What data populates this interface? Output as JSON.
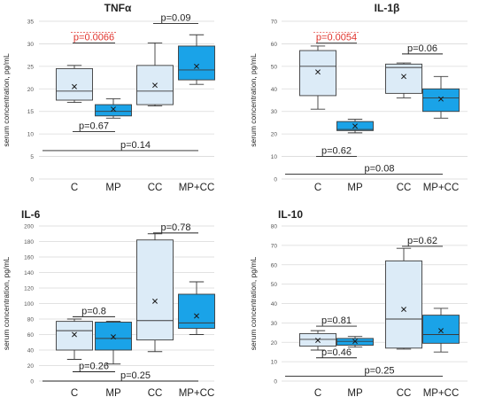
{
  "colors": {
    "light_box": "#dcebf7",
    "dark_box": "#1aa3e8",
    "edge": "#3b3b3b",
    "line": "#222222",
    "grid": "#d9d9d9",
    "sig": "#e0322b",
    "text": "#222222"
  },
  "chart_data": [
    {
      "type": "box",
      "title": "TNFα",
      "ylabel": "serum concentration, pg/mL",
      "ylim": [
        0,
        35
      ],
      "yticks": [
        0,
        5,
        10,
        15,
        20,
        25,
        30,
        35
      ],
      "grid": true,
      "categories": [
        "C",
        "MP",
        "CC",
        "MP+CC"
      ],
      "boxes": [
        {
          "category": "C",
          "min": 17,
          "q1": 17.5,
          "median": 19.5,
          "q3": 24.5,
          "max": 25.2,
          "mean": 20.5,
          "fill": "light"
        },
        {
          "category": "MP",
          "min": 13.5,
          "q1": 14,
          "median": 15,
          "q3": 16.5,
          "max": 17.8,
          "mean": 15.5,
          "fill": "dark"
        },
        {
          "category": "CC",
          "min": 16.2,
          "q1": 16.5,
          "median": 19.5,
          "q3": 25.2,
          "max": 30.2,
          "mean": 20.8,
          "fill": "light"
        },
        {
          "category": "MP+CC",
          "min": 21,
          "q1": 22,
          "median": 24.2,
          "q3": 29.5,
          "max": 32,
          "mean": 25,
          "fill": "dark"
        }
      ],
      "comparisons": [
        {
          "from": 0,
          "to": 1,
          "label": "p=0.0066",
          "significant": true,
          "y": 30.2
        },
        {
          "from": 2,
          "to": 3,
          "label": "p=0.09",
          "significant": false,
          "y": 34.5
        },
        {
          "from": 0,
          "to": 1,
          "label": "p=0.67",
          "significant": false,
          "y": 10.5
        },
        {
          "from": 0,
          "to": 3,
          "label": "p=0.14",
          "significant": false,
          "y": 6.3
        }
      ]
    },
    {
      "type": "box",
      "title": "IL-1β",
      "ylabel": "serum concentration, pg/mL",
      "ylim": [
        0,
        70
      ],
      "yticks": [
        0,
        10,
        20,
        30,
        40,
        50,
        60,
        70
      ],
      "grid": true,
      "categories": [
        "C",
        "MP",
        "CC",
        "MP+CC"
      ],
      "boxes": [
        {
          "category": "C",
          "min": 31,
          "q1": 37,
          "median": 50,
          "q3": 57,
          "max": 59,
          "mean": 47.5,
          "fill": "light"
        },
        {
          "category": "MP",
          "min": 20.5,
          "q1": 21.5,
          "median": 22,
          "q3": 25.5,
          "max": 26.5,
          "mean": 23.5,
          "fill": "dark"
        },
        {
          "category": "CC",
          "min": 36,
          "q1": 38,
          "median": 49.5,
          "q3": 51,
          "max": 51.5,
          "mean": 45.5,
          "fill": "light"
        },
        {
          "category": "MP+CC",
          "min": 27,
          "q1": 30,
          "median": 36,
          "q3": 40,
          "max": 45.5,
          "mean": 35.5,
          "fill": "dark"
        }
      ],
      "comparisons": [
        {
          "from": 0,
          "to": 1,
          "label": "p=0.0054",
          "significant": true,
          "y": 60.3
        },
        {
          "from": 2,
          "to": 3,
          "label": "p=0.06",
          "significant": false,
          "y": 55.5
        },
        {
          "from": 0,
          "to": 1,
          "label": "p=0.62",
          "significant": false,
          "y": 10
        },
        {
          "from": 0,
          "to": 3,
          "label": "p=0.08",
          "significant": false,
          "y": 2.2
        }
      ]
    },
    {
      "type": "box",
      "title": "IL-6",
      "ylabel": "serum concentration, pg/mL",
      "ylim": [
        0,
        200
      ],
      "yticks": [
        0,
        20,
        40,
        60,
        80,
        100,
        120,
        140,
        160,
        180,
        200
      ],
      "grid": true,
      "categories": [
        "C",
        "MP",
        "CC",
        "MP+CC"
      ],
      "boxes": [
        {
          "category": "C",
          "min": 28,
          "q1": 40,
          "median": 65,
          "q3": 77,
          "max": 80,
          "mean": 60,
          "fill": "light"
        },
        {
          "category": "MP",
          "min": 22,
          "q1": 40,
          "median": 55,
          "q3": 76,
          "max": 77,
          "mean": 57,
          "fill": "dark"
        },
        {
          "category": "CC",
          "min": 38,
          "q1": 53,
          "median": 78,
          "q3": 182,
          "max": 190,
          "mean": 103,
          "fill": "light"
        },
        {
          "category": "MP+CC",
          "min": 60,
          "q1": 68,
          "median": 75,
          "q3": 112,
          "max": 128,
          "mean": 84,
          "fill": "dark"
        }
      ],
      "comparisons": [
        {
          "from": 0,
          "to": 1,
          "label": "p=0.8",
          "significant": false,
          "y": 83
        },
        {
          "from": 2,
          "to": 3,
          "label": "p=0.78",
          "significant": false,
          "y": 191
        },
        {
          "from": 0,
          "to": 1,
          "label": "p=0.26",
          "significant": false,
          "y": 12
        },
        {
          "from": 0,
          "to": 3,
          "label": "p=0.25",
          "significant": false,
          "y": 0
        }
      ]
    },
    {
      "type": "box",
      "title": "IL-10",
      "ylabel": "serum concentration, pg/mL",
      "ylim": [
        0,
        80
      ],
      "yticks": [
        0,
        10,
        20,
        30,
        40,
        50,
        60,
        70,
        80
      ],
      "grid": true,
      "categories": [
        "C",
        "MP",
        "CC",
        "MP+CC"
      ],
      "boxes": [
        {
          "category": "C",
          "min": 16,
          "q1": 18,
          "median": 21.5,
          "q3": 24.5,
          "max": 26,
          "mean": 21,
          "fill": "light"
        },
        {
          "category": "MP",
          "min": 17.5,
          "q1": 18.5,
          "median": 20.5,
          "q3": 22,
          "max": 23,
          "mean": 20.5,
          "fill": "dark"
        },
        {
          "category": "CC",
          "min": 16.5,
          "q1": 17,
          "median": 32,
          "q3": 62,
          "max": 68.5,
          "mean": 37,
          "fill": "light"
        },
        {
          "category": "MP+CC",
          "min": 15,
          "q1": 19.5,
          "median": 24,
          "q3": 34,
          "max": 37.5,
          "mean": 26,
          "fill": "dark"
        }
      ],
      "comparisons": [
        {
          "from": 0,
          "to": 1,
          "label": "p=0.81",
          "significant": false,
          "y": 28.3
        },
        {
          "from": 2,
          "to": 3,
          "label": "p=0.62",
          "significant": false,
          "y": 69.5
        },
        {
          "from": 0,
          "to": 1,
          "label": "p=0.46",
          "significant": false,
          "y": 12
        },
        {
          "from": 0,
          "to": 3,
          "label": "p=0.25",
          "significant": false,
          "y": 2.5
        }
      ]
    }
  ]
}
